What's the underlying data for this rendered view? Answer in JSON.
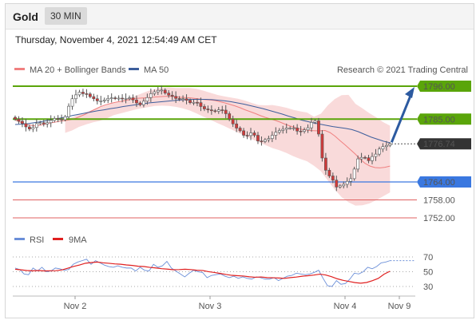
{
  "header": {
    "symbol": "Gold",
    "timeframe": "30 MIN"
  },
  "timestamp": "Thursday, November 4, 2021 12:54:49 AM CET",
  "copyright": "Research © 2021 Trading Central",
  "colors": {
    "bull": "#ffffff",
    "bear": "#d23a3a",
    "candle_outline": "#555555",
    "ma20": "#f08080",
    "ma50": "#3d5e9c",
    "band": "#f6c6c6",
    "resistance": "#5aa50a",
    "support": "#3a78e0",
    "support_thin": "#e06060",
    "arrow": "#2c5aa0",
    "rsi": "#6b8fd8",
    "rsi_ma": "#e02020"
  },
  "chart_data": [
    {
      "type": "candlestick",
      "instrument": "Gold",
      "timeframe": "30 MIN",
      "x_ticks": [
        "Nov 2",
        "Nov 3",
        "Nov 4",
        "Nov 9"
      ],
      "ylim": [
        1750,
        1799
      ],
      "legend": [
        {
          "name": "MA 20 + Bollinger Bands",
          "color": "#f08080"
        },
        {
          "name": "MA 50",
          "color": "#3d5e9c"
        }
      ],
      "closes": [
        1785.0,
        1784.3,
        1783.5,
        1782.4,
        1781.7,
        1782.2,
        1783.5,
        1783.8,
        1783.4,
        1783.8,
        1784.6,
        1785.2,
        1785.0,
        1784.8,
        1785.8,
        1789.3,
        1791.8,
        1793.1,
        1794.0,
        1793.5,
        1793.4,
        1792.5,
        1791.8,
        1791.1,
        1791.1,
        1791.4,
        1791.9,
        1792.1,
        1791.9,
        1792.0,
        1791.8,
        1791.9,
        1792.1,
        1791.4,
        1790.4,
        1789.8,
        1791.0,
        1792.2,
        1793.5,
        1794.1,
        1794.6,
        1794.7,
        1793.7,
        1793.0,
        1792.6,
        1791.9,
        1791.7,
        1791.8,
        1791.3,
        1790.5,
        1790.6,
        1790.5,
        1789.2,
        1788.4,
        1788.1,
        1787.8,
        1787.6,
        1788.1,
        1788.0,
        1786.8,
        1785.0,
        1783.4,
        1782.0,
        1781.1,
        1779.6,
        1779.5,
        1780.4,
        1779.6,
        1777.7,
        1777.5,
        1778.1,
        1778.5,
        1779.6,
        1780.6,
        1781.2,
        1781.6,
        1782.0,
        1782.0,
        1782.0,
        1781.0,
        1780.9,
        1781.4,
        1782.1,
        1783.9,
        1784.4,
        1780.0,
        1772.0,
        1767.9,
        1766.0,
        1764.6,
        1762.3,
        1762.7,
        1763.2,
        1764.2,
        1765.1,
        1768.3,
        1771.7,
        1772.2,
        1772.1,
        1771.1,
        1772.5,
        1773.3,
        1775.0,
        1775.8,
        1776.2,
        1776.7
      ],
      "ma20": [
        1784.7,
        1784.0,
        1783.2,
        1783.0,
        1782.7,
        1783.0,
        1783.3,
        1783.7,
        1784.0,
        1784.3,
        1784.5,
        1784.8,
        1785.2,
        1785.9,
        1786.6,
        1787.5,
        1788.3,
        1789.1,
        1789.7,
        1790.2,
        1790.6,
        1790.9,
        1791.2,
        1791.6,
        1791.9,
        1792.0,
        1792.1,
        1792.2,
        1792.4,
        1792.5,
        1792.6,
        1792.6,
        1792.5,
        1792.3,
        1792.2,
        1792.1,
        1791.9,
        1791.7,
        1791.5,
        1791.4,
        1791.2,
        1790.8,
        1790.4,
        1789.9,
        1789.4,
        1788.8,
        1788.1,
        1787.5,
        1786.9,
        1786.2,
        1785.6,
        1785.1,
        1784.6,
        1784.0,
        1783.3,
        1782.7,
        1782.2,
        1781.7,
        1781.4,
        1781.2,
        1781.1,
        1781.1,
        1781.2,
        1780.5,
        1779.3,
        1777.8,
        1776.4,
        1774.9,
        1773.4,
        1771.7,
        1770.2,
        1769.3,
        1768.8,
        1768.7,
        1768.9,
        1769.3
      ],
      "ma50": [
        1783.2,
        1783.3,
        1783.5,
        1783.8,
        1784.1,
        1784.5,
        1784.9,
        1785.3,
        1785.7,
        1786.2,
        1786.6,
        1787.0,
        1787.4,
        1787.8,
        1788.1,
        1788.5,
        1788.8,
        1789.2,
        1789.5,
        1789.8,
        1790.1,
        1790.4,
        1790.6,
        1790.8,
        1791.0,
        1791.2,
        1791.4,
        1791.5,
        1791.6,
        1791.6,
        1791.6,
        1791.5,
        1791.3,
        1791.1,
        1790.8,
        1790.4,
        1790.0,
        1789.5,
        1789.0,
        1788.5,
        1787.9,
        1787.3,
        1786.7,
        1786.0,
        1785.4,
        1784.7,
        1784.2,
        1783.7,
        1783.3,
        1782.9,
        1782.5,
        1782.2,
        1781.9,
        1781.5,
        1780.8,
        1779.9,
        1779.0,
        1778.3,
        1777.6,
        1777.1
      ],
      "bollinger": {
        "upper": [
          1784.9,
          1785.6,
          1786.6,
          1787.3,
          1788.1,
          1788.8,
          1789.6,
          1790.5,
          1791.1,
          1791.9,
          1792.6,
          1793.5,
          1794.4,
          1795.0,
          1795.5,
          1795.6,
          1795.4,
          1795.4,
          1795.4,
          1795.1,
          1794.5,
          1793.8,
          1793.1,
          1792.6,
          1792.2,
          1791.8,
          1791.2,
          1790.4,
          1789.7,
          1789.6,
          1789.7,
          1789.3,
          1788.8,
          1788.1,
          1787.6,
          1787.2,
          1785.8,
          1786.8,
          1789.6,
          1791.7,
          1793.0,
          1793.1,
          1790.1,
          1788.6,
          1787.0,
          1785.6,
          1784.0,
          1782.8
        ],
        "lower": [
          1780.4,
          1781.2,
          1782.4,
          1783.2,
          1783.9,
          1784.4,
          1785.2,
          1786.3,
          1786.9,
          1787.5,
          1788.1,
          1788.6,
          1789.0,
          1789.4,
          1789.5,
          1789.4,
          1789.1,
          1788.6,
          1787.9,
          1786.9,
          1785.8,
          1784.8,
          1783.7,
          1782.7,
          1781.6,
          1780.5,
          1779.4,
          1778.3,
          1777.3,
          1776.3,
          1775.3,
          1774.6,
          1773.7,
          1772.6,
          1771.7,
          1770.9,
          1769.4,
          1767.6,
          1764.5,
          1761.5,
          1758.9,
          1757.2,
          1756.1,
          1756.2,
          1756.8,
          1757.9,
          1759.2,
          1760.5
        ]
      },
      "levels": [
        {
          "value": "1796.00",
          "role": "resistance",
          "current": false
        },
        {
          "value": "1785.00",
          "role": "resistance",
          "current": false
        },
        {
          "value": "1776.74",
          "role": "last",
          "current": true
        },
        {
          "value": "1764.00",
          "role": "support",
          "current": false
        },
        {
          "value": "1758.00",
          "role": "support",
          "current": false
        },
        {
          "value": "1752.00",
          "role": "support",
          "current": false
        }
      ],
      "forecast_target": 1796.0
    },
    {
      "type": "line",
      "title": "RSI",
      "legend": [
        {
          "name": "RSI",
          "color": "#6b8fd8"
        },
        {
          "name": "9MA",
          "color": "#e02020"
        }
      ],
      "ylim": [
        20,
        80
      ],
      "y_ticks": [
        "70",
        "50",
        "30"
      ],
      "series": [
        {
          "name": "RSI",
          "values": [
            55,
            53,
            47,
            46,
            55,
            51,
            56,
            50,
            51,
            55,
            54,
            52,
            53,
            60,
            63,
            65,
            67,
            60,
            65,
            62,
            59,
            57,
            56,
            58,
            56,
            55,
            55,
            51,
            56,
            52,
            51,
            60,
            56,
            58,
            64,
            55,
            51,
            47,
            43,
            48,
            52,
            50,
            49,
            42,
            45,
            46,
            47,
            44,
            42,
            44,
            41,
            43,
            41,
            40,
            43,
            42,
            40,
            40,
            42,
            38,
            41,
            44,
            45,
            48,
            47,
            46,
            47,
            49,
            52,
            41,
            31,
            30,
            38,
            33,
            34,
            40,
            48,
            47,
            50,
            56,
            54,
            57,
            62,
            63,
            65
          ]
        },
        {
          "name": "9MA",
          "values": [
            53.4,
            52.6,
            51.6,
            51.2,
            51.6,
            51.1,
            51.3,
            51.4,
            52.5,
            54.8,
            57.2,
            59.1,
            61.5,
            62.4,
            63.1,
            62.1,
            61.4,
            60.6,
            60.1,
            59.2,
            58.5,
            57.4,
            57.0,
            55.9,
            55.1,
            54.1,
            53.5,
            52.7,
            52.9,
            53.4,
            52.9,
            52.0,
            51.7,
            50.1,
            49.0,
            47.7,
            46.3,
            45.1,
            44.6,
            44.1,
            43.1,
            42.5,
            42.9,
            42.0,
            41.8,
            41.5,
            41.0,
            42.0,
            42.8,
            43.9,
            44.6,
            45.5,
            46.7,
            45.6,
            43.3,
            40.4,
            38.3,
            36.8,
            35.3,
            34.5,
            35.4,
            37.9,
            41.0,
            46.8,
            50.7
          ]
        }
      ]
    }
  ]
}
